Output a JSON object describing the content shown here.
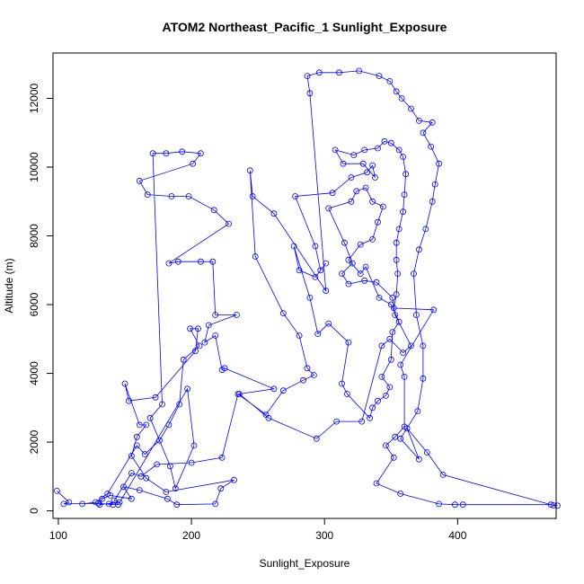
{
  "chart_data": {
    "type": "line",
    "title": "ATOM2 Northeast_Pacific_1 Sunlight_Exposure",
    "xlabel": "Sunlight_Exposure",
    "ylabel": "Altitude (m)",
    "xlim": [
      96,
      474
    ],
    "ylim": [
      -220,
      13320
    ],
    "x_ticks": [
      100,
      200,
      300,
      400
    ],
    "y_ticks": [
      0,
      2000,
      4000,
      6000,
      8000,
      10000,
      12000
    ],
    "grid": false,
    "line_color": "#0000ff",
    "marker": "open-circle",
    "series": [
      {
        "points": [
          [
            99,
            580
          ],
          [
            108,
            250
          ],
          [
            104,
            200
          ],
          [
            130,
            220
          ],
          [
            141,
            180
          ],
          [
            138,
            200
          ],
          [
            145,
            180
          ],
          [
            197,
            3550
          ],
          [
            202,
            1900
          ],
          [
            188,
            650
          ],
          [
            184,
            1300
          ],
          [
            169,
            2700
          ],
          [
            178,
            3100
          ],
          [
            171,
            10400
          ],
          [
            181,
            10400
          ],
          [
            193,
            10450
          ],
          [
            207,
            10400
          ],
          [
            201,
            10100
          ],
          [
            161,
            9600
          ],
          [
            167,
            9200
          ],
          [
            185,
            9150
          ],
          [
            198,
            9150
          ],
          [
            217,
            8750
          ],
          [
            228,
            8350
          ],
          [
            183,
            7200
          ],
          [
            190,
            7250
          ],
          [
            207,
            7250
          ],
          [
            216,
            7250
          ],
          [
            218,
            5700
          ],
          [
            234,
            5700
          ],
          [
            213,
            5400
          ],
          [
            210,
            4900
          ],
          [
            218,
            5100
          ],
          [
            223,
            4100
          ],
          [
            225,
            4150
          ],
          [
            262,
            3550
          ],
          [
            236,
            3400
          ],
          [
            258,
            2700
          ],
          [
            294,
            2100
          ],
          [
            309,
            2600
          ],
          [
            328,
            2600
          ],
          [
            343,
            4800
          ],
          [
            349,
            5000
          ],
          [
            359,
            4600
          ],
          [
            365,
            4800
          ],
          [
            353,
            5700
          ],
          [
            351,
            6200
          ],
          [
            339,
            6650
          ],
          [
            330,
            6700
          ],
          [
            318,
            6600
          ],
          [
            313,
            6900
          ],
          [
            321,
            7200
          ],
          [
            315,
            7800
          ],
          [
            303,
            8800
          ],
          [
            320,
            9000
          ],
          [
            324,
            9300
          ],
          [
            331,
            9400
          ],
          [
            336,
            9000
          ],
          [
            344,
            8850
          ],
          [
            340,
            8400
          ],
          [
            336,
            7900
          ],
          [
            327,
            7750
          ],
          [
            318,
            7300
          ],
          [
            327,
            6900
          ],
          [
            331,
            7100
          ],
          [
            341,
            6200
          ],
          [
            350,
            6000
          ],
          [
            356,
            5500
          ],
          [
            351,
            5200
          ],
          [
            350,
            4400
          ],
          [
            343,
            3900
          ],
          [
            349,
            3600
          ],
          [
            346,
            3350
          ],
          [
            340,
            3200
          ],
          [
            336,
            3000
          ],
          [
            334,
            2700
          ],
          [
            317,
            3400
          ],
          [
            313,
            3700
          ],
          [
            318,
            4900
          ],
          [
            303,
            5450
          ],
          [
            295,
            5150
          ],
          [
            289,
            6200
          ],
          [
            277,
            7700
          ],
          [
            281,
            7000
          ],
          [
            293,
            6800
          ],
          [
            301,
            7200
          ],
          [
            297,
            7000
          ],
          [
            293,
            7700
          ],
          [
            278,
            9150
          ],
          [
            306,
            9250
          ],
          [
            320,
            9700
          ],
          [
            332,
            9850
          ],
          [
            336,
            10050
          ],
          [
            338,
            9700
          ],
          [
            329,
            10100
          ],
          [
            314,
            10100
          ],
          [
            308,
            10500
          ],
          [
            322,
            10350
          ],
          [
            330,
            10500
          ],
          [
            340,
            10550
          ],
          [
            345,
            10750
          ],
          [
            350,
            10700
          ],
          [
            356,
            10500
          ],
          [
            359,
            10300
          ],
          [
            361,
            9800
          ],
          [
            360,
            9200
          ],
          [
            359,
            8700
          ],
          [
            356,
            8200
          ],
          [
            354,
            7800
          ],
          [
            354,
            7300
          ],
          [
            355,
            6900
          ],
          [
            354,
            6300
          ],
          [
            352,
            5900
          ],
          [
            382,
            5850
          ],
          [
            357,
            4250
          ],
          [
            360,
            3900
          ],
          [
            360,
            2450
          ],
          [
            353,
            2150
          ],
          [
            346,
            1900
          ],
          [
            352,
            1550
          ],
          [
            339,
            800
          ],
          [
            357,
            500
          ],
          [
            386,
            200
          ],
          [
            398,
            180
          ],
          [
            404,
            180
          ],
          [
            470,
            180
          ],
          [
            475,
            150
          ],
          [
            472,
            160
          ],
          [
            389,
            1050
          ],
          [
            377,
            1700
          ],
          [
            362,
            2400
          ],
          [
            371,
            1500
          ],
          [
            357,
            2100
          ],
          [
            370,
            2900
          ],
          [
            374,
            3850
          ],
          [
            374,
            4800
          ],
          [
            369,
            5700
          ],
          [
            367,
            6900
          ],
          [
            371,
            7600
          ],
          [
            376,
            8200
          ],
          [
            381,
            9000
          ],
          [
            383,
            9500
          ],
          [
            386,
            10100
          ],
          [
            380,
            10600
          ],
          [
            374,
            11000
          ],
          [
            381,
            11300
          ],
          [
            371,
            11350
          ],
          [
            365,
            11700
          ],
          [
            358,
            12000
          ],
          [
            354,
            12200
          ],
          [
            349,
            12500
          ],
          [
            341,
            12650
          ],
          [
            326,
            12800
          ],
          [
            311,
            12750
          ],
          [
            296,
            12750
          ],
          [
            287,
            12650
          ],
          [
            289,
            12150
          ],
          [
            301,
            6400
          ],
          [
            262,
            8650
          ],
          [
            246,
            9150
          ],
          [
            244,
            9900
          ],
          [
            248,
            7400
          ],
          [
            269,
            5750
          ],
          [
            281,
            5100
          ],
          [
            287,
            4150
          ],
          [
            292,
            3950
          ],
          [
            284,
            3800
          ],
          [
            269,
            3500
          ],
          [
            256,
            2800
          ],
          [
            235,
            3400
          ],
          [
            223,
            1550
          ],
          [
            200,
            1400
          ],
          [
            174,
            1350
          ],
          [
            162,
            1000
          ],
          [
            155,
            1100
          ],
          [
            142,
            300
          ],
          [
            146,
            250
          ],
          [
            131,
            180
          ],
          [
            133,
            350
          ],
          [
            139,
            450
          ],
          [
            155,
            350
          ],
          [
            149,
            700
          ],
          [
            161,
            600
          ],
          [
            182,
            350
          ],
          [
            189,
            180
          ],
          [
            218,
            200
          ],
          [
            222,
            650
          ],
          [
            232,
            900
          ],
          [
            181,
            550
          ],
          [
            166,
            950
          ],
          [
            155,
            1600
          ],
          [
            159,
            2150
          ],
          [
            166,
            2500
          ],
          [
            161,
            2500
          ],
          [
            150,
            3700
          ],
          [
            153,
            3200
          ],
          [
            173,
            3300
          ],
          [
            203,
            4650
          ],
          [
            205,
            5300
          ],
          [
            199,
            5300
          ],
          [
            206,
            4800
          ],
          [
            194,
            4400
          ],
          [
            191,
            3100
          ],
          [
            183,
            2500
          ],
          [
            176,
            2050
          ],
          [
            165,
            1650
          ],
          [
            159,
            1900
          ],
          [
            137,
            500
          ],
          [
            128,
            250
          ],
          [
            118,
            200
          ]
        ]
      }
    ]
  }
}
